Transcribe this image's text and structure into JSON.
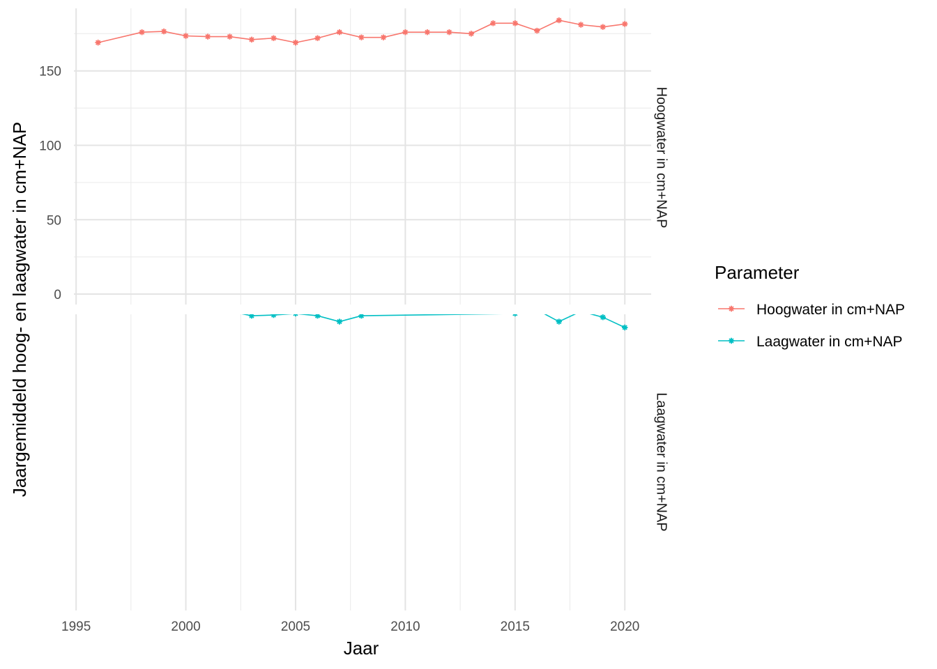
{
  "chart_data": {
    "type": "line",
    "xlabel": "Jaar",
    "ylabel": "Jaargemiddeld hoog- en laagwater in cm+NAP",
    "x_ticks": [
      1995,
      2000,
      2005,
      2010,
      2015,
      2020
    ],
    "xlim": [
      1994.9,
      2021.2
    ],
    "legend": {
      "title": "Parameter",
      "position": "right",
      "entries": [
        "Hoogwater in cm+NAP",
        "Laagwater in cm+NAP"
      ]
    },
    "grid": true,
    "facets": [
      {
        "label": "Hoogwater in cm+NAP",
        "series": "Hoogwater in cm+NAP",
        "color": "#F8766D",
        "y_ticks": [
          0,
          50,
          100,
          150
        ],
        "ylim": [
          -7,
          192
        ],
        "x": [
          1996,
          1998,
          1999,
          2000,
          2001,
          2002,
          2003,
          2004,
          2005,
          2006,
          2007,
          2008,
          2009,
          2010,
          2011,
          2012,
          2013,
          2014,
          2015,
          2016,
          2017,
          2018,
          2019,
          2020
        ],
        "y": [
          169,
          176,
          176.5,
          173.5,
          173,
          173,
          171,
          172,
          169,
          172,
          176,
          172.5,
          172.5,
          176,
          176,
          176,
          175,
          182,
          182,
          177,
          184,
          181,
          179.5,
          181.5
        ]
      },
      {
        "label": "Laagwater in cm+NAP",
        "series": "Laagwater in cm+NAP",
        "color": "#00BFC4",
        "y_ticks": [],
        "ylim": [
          -242,
          -40
        ],
        "x": [
          2002,
          2003,
          2004,
          2005,
          2006,
          2007,
          2008,
          2015,
          2016,
          2017,
          2018,
          2019,
          2020
        ],
        "y": [
          -38,
          -41,
          -40.5,
          -39.5,
          -41,
          -45,
          -41,
          -39.5,
          -37,
          -45,
          -38,
          -42,
          -49
        ]
      }
    ]
  }
}
